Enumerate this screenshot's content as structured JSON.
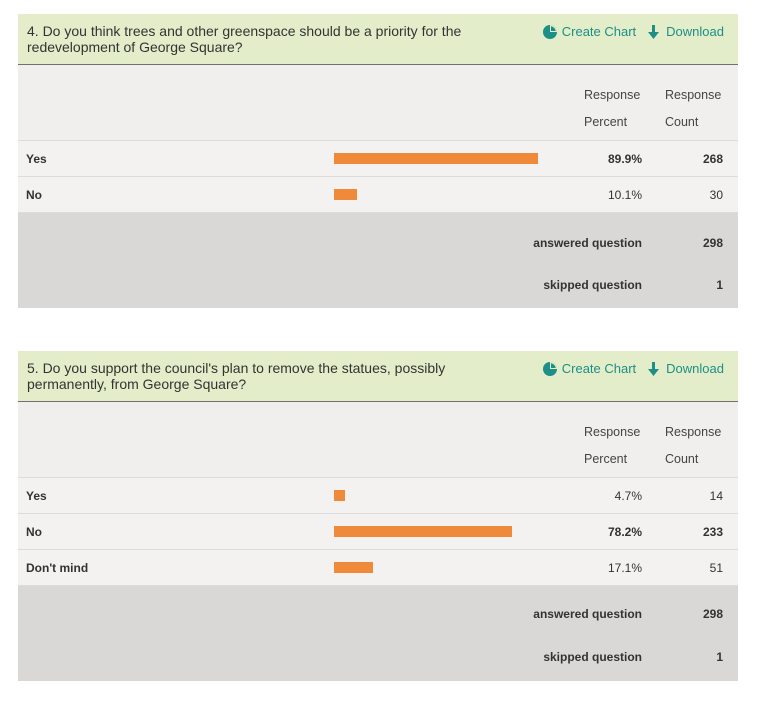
{
  "questions": [
    {
      "text": "4. Do you think trees and other greenspace should be a priority for the redevelopment of George Square?",
      "actions": {
        "create_chart": "Create Chart",
        "download": "Download"
      },
      "headers": {
        "response_percent_1": "Response",
        "response_percent_2": "Percent",
        "response_count_1": "Response",
        "response_count_2": "Count"
      },
      "rows": [
        {
          "label": "Yes",
          "percent": "89.9%",
          "count": "268",
          "value": 0.899
        },
        {
          "label": "No",
          "percent": "10.1%",
          "count": "30",
          "value": 0.101
        }
      ],
      "summary": {
        "answered_label": "answered question",
        "answered": "298",
        "skipped_label": "skipped question",
        "skipped": "1"
      }
    },
    {
      "text": "5. Do you support the council's plan to remove the statues, possibly permanently, from George Square?",
      "actions": {
        "create_chart": "Create Chart",
        "download": "Download"
      },
      "headers": {
        "response_percent_1": "Response",
        "response_percent_2": "Percent",
        "response_count_1": "Response",
        "response_count_2": "Count"
      },
      "rows": [
        {
          "label": "Yes",
          "percent": "4.7%",
          "count": "14",
          "value": 0.047
        },
        {
          "label": "No",
          "percent": "78.2%",
          "count": "233",
          "value": 0.782
        },
        {
          "label": "Don't mind",
          "percent": "17.1%",
          "count": "51",
          "value": 0.171
        }
      ],
      "summary": {
        "answered_label": "answered question",
        "answered": "298",
        "skipped_label": "skipped question",
        "skipped": "1"
      }
    }
  ],
  "colors": {
    "header_bg": "#e4edc9",
    "link": "#1c8f86",
    "bar": "#ef8a3a",
    "table_bg": "#f0efed",
    "summary_bg": "#d9d8d6"
  }
}
